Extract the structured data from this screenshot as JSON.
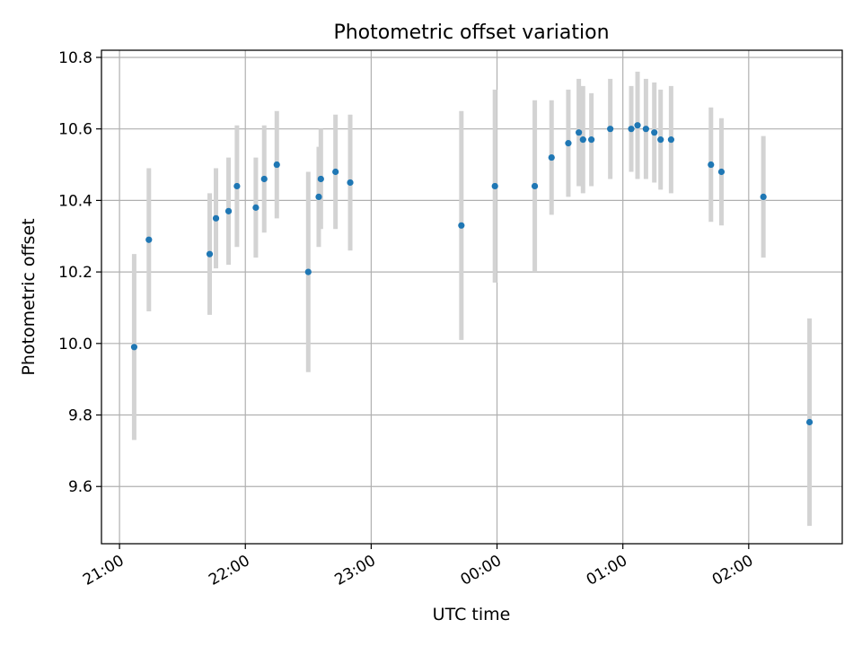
{
  "chart_data": {
    "type": "scatter",
    "title": "Photometric offset variation",
    "xlabel": "UTC time",
    "ylabel": "Photometric offset",
    "grid": true,
    "x_ticks": [
      "21:00",
      "22:00",
      "23:00",
      "00:00",
      "01:00",
      "02:00"
    ],
    "x_ticks_min": [
      1260,
      1320,
      1380,
      1440,
      1500,
      1560
    ],
    "y_ticks": [
      "9.6",
      "9.8",
      "10.0",
      "10.2",
      "10.4",
      "10.6",
      "10.8"
    ],
    "y_ticks_val": [
      9.6,
      9.8,
      10.0,
      10.2,
      10.4,
      10.6,
      10.8
    ],
    "xlim": [
      1251.4,
      1604.6
    ],
    "ylim": [
      9.44,
      10.82
    ],
    "marker_color": "#1f77b4",
    "errorbar_color": "#d3d3d3",
    "points": [
      {
        "t": "21:07",
        "y": 9.99,
        "err": 0.26
      },
      {
        "t": "21:14",
        "y": 10.29,
        "err": 0.2
      },
      {
        "t": "21:43",
        "y": 10.25,
        "err": 0.17
      },
      {
        "t": "21:46",
        "y": 10.35,
        "err": 0.14
      },
      {
        "t": "21:52",
        "y": 10.37,
        "err": 0.15
      },
      {
        "t": "21:56",
        "y": 10.44,
        "err": 0.17
      },
      {
        "t": "22:05",
        "y": 10.38,
        "err": 0.14
      },
      {
        "t": "22:09",
        "y": 10.46,
        "err": 0.15
      },
      {
        "t": "22:15",
        "y": 10.5,
        "err": 0.15
      },
      {
        "t": "22:30",
        "y": 10.2,
        "err": 0.28
      },
      {
        "t": "22:35",
        "y": 10.41,
        "err": 0.14
      },
      {
        "t": "22:36",
        "y": 10.46,
        "err": 0.14
      },
      {
        "t": "22:43",
        "y": 10.48,
        "err": 0.16
      },
      {
        "t": "22:50",
        "y": 10.45,
        "err": 0.19
      },
      {
        "t": "23:43",
        "y": 10.33,
        "err": 0.32
      },
      {
        "t": "23:59",
        "y": 10.44,
        "err": 0.27
      },
      {
        "t": "00:18",
        "y": 10.44,
        "err": 0.24
      },
      {
        "t": "00:26",
        "y": 10.52,
        "err": 0.16
      },
      {
        "t": "00:34",
        "y": 10.56,
        "err": 0.15
      },
      {
        "t": "00:39",
        "y": 10.59,
        "err": 0.15
      },
      {
        "t": "00:41",
        "y": 10.57,
        "err": 0.15
      },
      {
        "t": "00:45",
        "y": 10.57,
        "err": 0.13
      },
      {
        "t": "00:54",
        "y": 10.6,
        "err": 0.14
      },
      {
        "t": "01:04",
        "y": 10.6,
        "err": 0.12
      },
      {
        "t": "01:07",
        "y": 10.61,
        "err": 0.15
      },
      {
        "t": "01:11",
        "y": 10.6,
        "err": 0.14
      },
      {
        "t": "01:15",
        "y": 10.59,
        "err": 0.14
      },
      {
        "t": "01:18",
        "y": 10.57,
        "err": 0.14
      },
      {
        "t": "01:23",
        "y": 10.57,
        "err": 0.15
      },
      {
        "t": "01:42",
        "y": 10.5,
        "err": 0.16
      },
      {
        "t": "01:47",
        "y": 10.48,
        "err": 0.15
      },
      {
        "t": "02:07",
        "y": 10.41,
        "err": 0.17
      },
      {
        "t": "02:29",
        "y": 9.78,
        "err": 0.29
      }
    ]
  }
}
